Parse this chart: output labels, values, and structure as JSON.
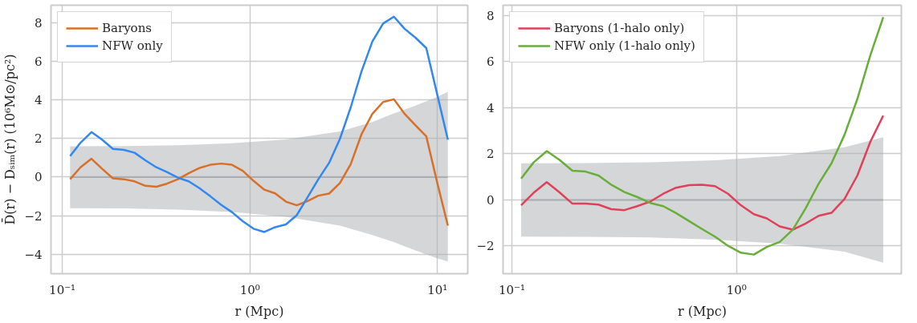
{
  "chart_data": [
    {
      "type": "line",
      "xlabel": "r (Mpc)",
      "ylabel": "D̄(r) − Dₛᵢₘ(r) (10⁶M⊙/pc²)",
      "log": "x",
      "grid": true,
      "legend": "top left",
      "x": [
        0.11,
        0.125,
        0.143,
        0.163,
        0.186,
        0.213,
        0.243,
        0.277,
        0.317,
        0.361,
        0.413,
        0.472,
        0.538,
        0.615,
        0.702,
        0.802,
        0.916,
        1.045,
        1.194,
        1.363,
        1.556,
        1.778,
        2.03,
        2.317,
        2.645,
        3.02,
        3.447,
        3.936,
        4.494,
        5.131,
        5.858,
        6.689,
        7.637,
        8.719,
        9.954,
        11.36
      ],
      "xlim": [
        0.087,
        14.5
      ],
      "xticks": [
        {
          "value": 0.1,
          "label": "10⁻¹"
        },
        {
          "value": 1,
          "label": "10⁰"
        },
        {
          "value": 10,
          "label": "10¹"
        }
      ],
      "ylim": [
        -5.0,
        8.9
      ],
      "yticks": [
        -4,
        -2,
        0,
        2,
        4,
        6,
        8
      ],
      "series": [
        {
          "type": "line",
          "color": "#a9aeb1",
          "x": [
            0.11,
            0.213,
            0.413,
            0.802,
            1.556,
            3.02,
            4.494,
            5.858,
            7.637,
            9.954,
            11.36
          ],
          "values": [
            0,
            0,
            0,
            0,
            0,
            0,
            0,
            0,
            0,
            0,
            0
          ],
          "lower": [
            -1.61,
            -1.62,
            -1.68,
            -1.8,
            -2.05,
            -2.51,
            -3.0,
            -3.36,
            -3.8,
            -4.2,
            -4.37
          ],
          "upper": [
            1.6,
            1.61,
            1.65,
            1.75,
            1.95,
            2.37,
            2.85,
            3.3,
            3.7,
            4.15,
            4.42
          ]
        },
        {
          "name": "Baryons",
          "color": "#d8702a",
          "values": [
            -0.11,
            0.51,
            0.95,
            0.43,
            -0.06,
            -0.11,
            -0.22,
            -0.45,
            -0.5,
            -0.34,
            -0.11,
            0.2,
            0.47,
            0.64,
            0.7,
            0.64,
            0.33,
            -0.19,
            -0.65,
            -0.84,
            -1.27,
            -1.46,
            -1.24,
            -0.96,
            -0.85,
            -0.31,
            0.67,
            2.22,
            3.27,
            3.89,
            4.03,
            3.27,
            2.68,
            2.11,
            -0.26,
            -2.51
          ]
        },
        {
          "name": "NFW only",
          "color": "#3388f0",
          "values": [
            1.09,
            1.78,
            2.33,
            1.94,
            1.46,
            1.41,
            1.26,
            0.87,
            0.51,
            0.26,
            -0.03,
            -0.22,
            -0.57,
            -0.99,
            -1.43,
            -1.81,
            -2.28,
            -2.67,
            -2.84,
            -2.59,
            -2.45,
            -1.97,
            -1.04,
            -0.11,
            0.74,
            1.98,
            3.61,
            5.47,
            7.02,
            7.95,
            8.31,
            7.67,
            7.22,
            6.68,
            4.31,
            1.94
          ]
        }
      ]
    },
    {
      "type": "line",
      "xlabel": "r (Mpc)",
      "log": "x",
      "grid": true,
      "legend": "top left",
      "x": [
        0.11,
        0.125,
        0.143,
        0.163,
        0.186,
        0.213,
        0.243,
        0.277,
        0.317,
        0.361,
        0.413,
        0.472,
        0.538,
        0.615,
        0.702,
        0.802,
        0.916,
        1.045,
        1.194,
        1.363,
        1.556,
        1.778,
        2.03,
        2.317,
        2.645,
        3.02,
        3.447,
        3.936,
        4.494
      ],
      "xlim": [
        0.0914,
        5.41
      ],
      "xticks": [
        {
          "value": 0.1,
          "label": "10⁻¹"
        },
        {
          "value": 1,
          "label": "10⁰"
        }
      ],
      "ylim": [
        -3.2,
        8.45
      ],
      "yticks": [
        -2,
        0,
        2,
        4,
        6,
        8
      ],
      "series": [
        {
          "type": "line",
          "color": "#a9aeb1",
          "x": [
            0.11,
            0.213,
            0.413,
            0.802,
            1.556,
            3.02,
            4.494
          ],
          "values": [
            0,
            0,
            0,
            0,
            0,
            0,
            0
          ],
          "lower": [
            -1.59,
            -1.6,
            -1.63,
            -1.72,
            -1.9,
            -2.24,
            -2.72
          ],
          "upper": [
            1.59,
            1.6,
            1.63,
            1.72,
            1.9,
            2.29,
            2.72
          ]
        },
        {
          "name": "Baryons (1-halo only)",
          "color": "#e0405a",
          "values": [
            -0.23,
            0.31,
            0.77,
            0.33,
            -0.16,
            -0.16,
            -0.2,
            -0.4,
            -0.44,
            -0.27,
            -0.07,
            0.27,
            0.53,
            0.64,
            0.66,
            0.6,
            0.27,
            -0.23,
            -0.62,
            -0.8,
            -1.15,
            -1.29,
            -1.02,
            -0.69,
            -0.56,
            0.04,
            1.06,
            2.52,
            3.66
          ]
        },
        {
          "name": "NFW only (1-halo only)",
          "color": "#6aae3a",
          "values": [
            0.93,
            1.63,
            2.12,
            1.74,
            1.27,
            1.23,
            1.06,
            0.66,
            0.34,
            0.13,
            -0.13,
            -0.27,
            -0.57,
            -0.92,
            -1.26,
            -1.59,
            -1.99,
            -2.29,
            -2.37,
            -2.04,
            -1.82,
            -1.29,
            -0.36,
            0.7,
            1.59,
            2.82,
            4.38,
            6.27,
            7.93
          ]
        }
      ]
    }
  ]
}
